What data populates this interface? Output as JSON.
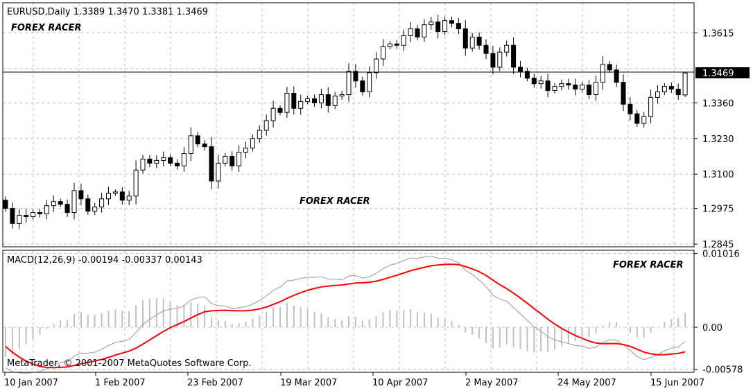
{
  "chart_data": [
    {
      "type": "candlestick",
      "header": "EURUSD,Daily  1.3389 1.3470 1.3381 1.3469",
      "symbol": "EURUSD",
      "timeframe": "Daily",
      "last_ohlc": {
        "open": 1.3389,
        "high": 1.347,
        "low": 1.3381,
        "close": 1.3469
      },
      "current_price_label": "1.3469",
      "current_price": 1.3469,
      "ylim": [
        1.2835,
        1.3725
      ],
      "yticks": [
        1.2845,
        1.2975,
        1.31,
        1.323,
        1.336,
        1.3615
      ],
      "ytick_labels": [
        "1.2845",
        "1.2975",
        "1.3100",
        "1.3230",
        "1.3360",
        "1.3615"
      ],
      "grid": true,
      "closes": [
        1.2975,
        1.292,
        1.295,
        1.2945,
        1.296,
        1.2955,
        1.2985,
        1.3,
        1.299,
        1.296,
        1.304,
        1.301,
        1.2965,
        1.298,
        1.301,
        1.303,
        1.3035,
        1.3005,
        1.302,
        1.3115,
        1.3155,
        1.314,
        1.315,
        1.316,
        1.314,
        1.313,
        1.3175,
        1.324,
        1.321,
        1.32,
        1.3075,
        1.314,
        1.3165,
        1.313,
        1.318,
        1.3195,
        1.323,
        1.326,
        1.3295,
        1.334,
        1.3325,
        1.3395,
        1.334,
        1.3365,
        1.3375,
        1.336,
        1.339,
        1.335,
        1.3385,
        1.339,
        1.3475,
        1.344,
        1.34,
        1.347,
        1.352,
        1.3565,
        1.3575,
        1.357,
        1.3605,
        1.363,
        1.36,
        1.3645,
        1.3655,
        1.362,
        1.366,
        1.365,
        1.363,
        1.356,
        1.36,
        1.357,
        1.354,
        1.349,
        1.3545,
        1.357,
        1.349,
        1.3475,
        1.345,
        1.343,
        1.344,
        1.3405,
        1.342,
        1.343,
        1.3425,
        1.341,
        1.3425,
        1.339,
        1.3435,
        1.35,
        1.348,
        1.3435,
        1.3355,
        1.332,
        1.3285,
        1.331,
        1.338,
        1.34,
        1.342,
        1.341,
        1.339,
        1.3469
      ],
      "macd": {
        "header": "MACD(12,26,9) -0.00194 -0.00337 0.00143",
        "params": [
          12,
          26,
          9
        ],
        "main": -0.00194,
        "signal": -0.00337,
        "histogram": 0.00143,
        "ylim": [
          -0.0062,
          0.0106
        ],
        "yticks": [
          0.01016,
          0.0,
          -0.00578
        ],
        "ytick_labels": [
          "0.01016",
          "0.00",
          "-0.00578"
        ],
        "signal_color": "#ff0000",
        "macd_color": "#999999",
        "histogram_color": "#c0c0c0"
      },
      "x_labels": [
        "10 Jan 2007",
        "1 Feb 2007",
        "23 Feb 2007",
        "19 Mar 2007",
        "10 Apr 2007",
        "2 May 2007",
        "24 May 2007",
        "15 Jun 2007"
      ],
      "copyright": "MetaTrader, © 2001-2007 MetaQuotes Software Corp.",
      "watermark": "FOREX RACER"
    }
  ]
}
